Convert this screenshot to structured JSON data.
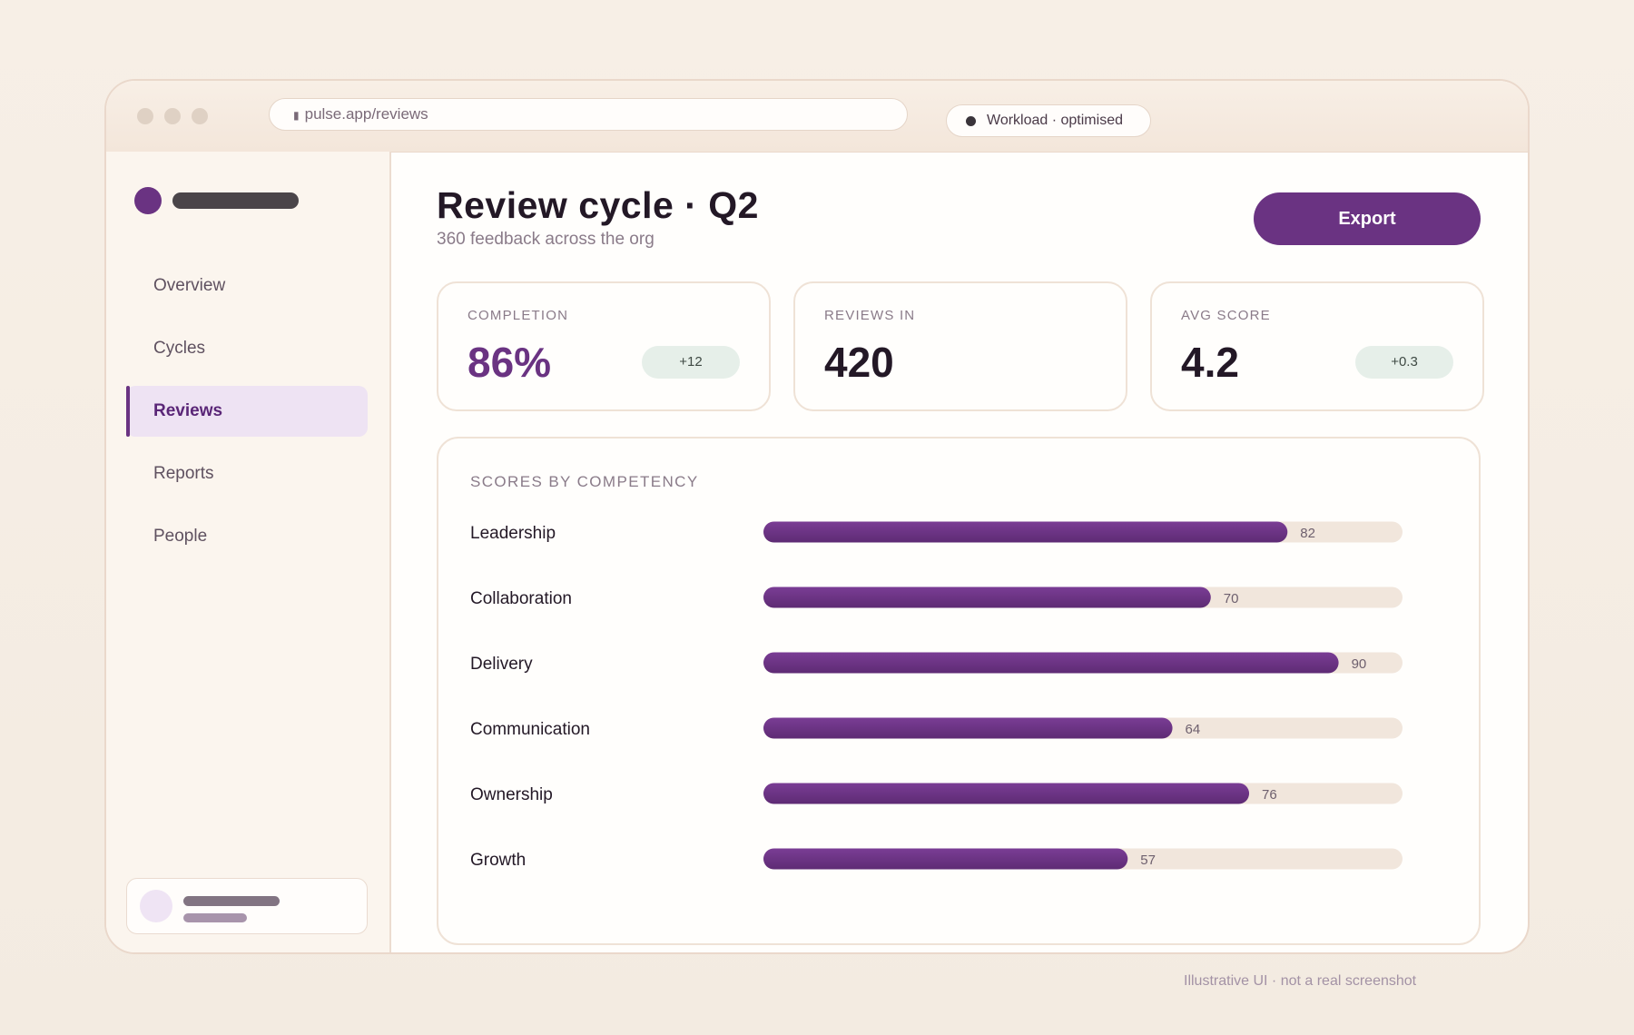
{
  "browser": {
    "url": "pulse.app/reviews",
    "status_text": "Workload · optimised"
  },
  "sidebar": {
    "items": [
      {
        "label": "Overview",
        "active": false
      },
      {
        "label": "Cycles",
        "active": false
      },
      {
        "label": "Reviews",
        "active": true
      },
      {
        "label": "Reports",
        "active": false
      },
      {
        "label": "People",
        "active": false
      }
    ]
  },
  "header": {
    "title": "Review cycle · Q2",
    "subtitle": "360 feedback across the org",
    "export_label": "Export"
  },
  "kpis": [
    {
      "label": "COMPLETION",
      "value": "86%",
      "delta": "+12"
    },
    {
      "label": "REVIEWS IN",
      "value": "420",
      "delta": ""
    },
    {
      "label": "AVG SCORE",
      "value": "4.2",
      "delta": "+0.3"
    }
  ],
  "colors": {
    "accent": "#6a3382",
    "track": "#f1e6dc",
    "delta_bg": "#e6efe9"
  },
  "chart_data": {
    "type": "bar",
    "orientation": "horizontal",
    "title": "SCORES BY COMPETENCY",
    "categories": [
      "Leadership",
      "Collaboration",
      "Delivery",
      "Communication",
      "Ownership",
      "Growth"
    ],
    "values": [
      82,
      70,
      90,
      64,
      76,
      57
    ],
    "xlim": [
      0,
      100
    ]
  },
  "footer_note": "Illustrative UI · not a real screenshot"
}
